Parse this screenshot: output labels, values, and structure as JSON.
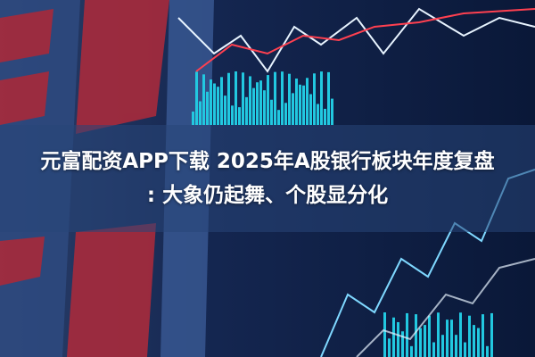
{
  "article": {
    "title_line1": "元富配资APP下载 2025年A股银行板块年度复盘",
    "title_line2": ": 大象仍起舞、个股显分化"
  },
  "colors": {
    "background": "#0a1530",
    "red_panels": "#b02a3a",
    "cyan_bars": "#22c8e0",
    "line_white": "#e8f4ff",
    "banner": "#284678"
  }
}
